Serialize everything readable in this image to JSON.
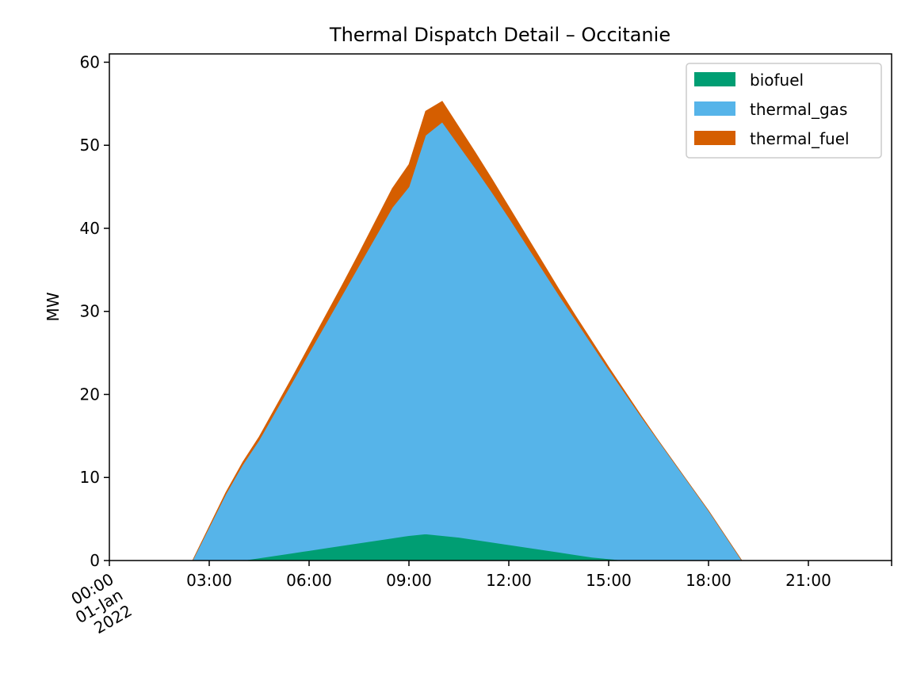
{
  "chart_data": {
    "type": "area",
    "stacked": true,
    "title": "Thermal Dispatch Detail – Occitanie",
    "xlabel": "",
    "ylabel": "MW",
    "xlim_hours": [
      0,
      23.5
    ],
    "ylim": [
      0,
      61
    ],
    "yticks": [
      0,
      10,
      20,
      30,
      40,
      50,
      60
    ],
    "xticks": [
      {
        "hour": 0,
        "lines": [
          "00:00",
          "01-Jan",
          "2022"
        ],
        "rotated": true
      },
      {
        "hour": 3,
        "lines": [
          "03:00"
        ],
        "rotated": false
      },
      {
        "hour": 6,
        "lines": [
          "06:00"
        ],
        "rotated": false
      },
      {
        "hour": 9,
        "lines": [
          "09:00"
        ],
        "rotated": false
      },
      {
        "hour": 12,
        "lines": [
          "12:00"
        ],
        "rotated": false
      },
      {
        "hour": 15,
        "lines": [
          "15:00"
        ],
        "rotated": false
      },
      {
        "hour": 18,
        "lines": [
          "18:00"
        ],
        "rotated": false
      },
      {
        "hour": 21,
        "lines": [
          "21:00"
        ],
        "rotated": false
      }
    ],
    "legend_position": "top-right",
    "grid": false,
    "x": [
      0,
      0.5,
      1,
      1.5,
      2,
      2.5,
      3,
      3.5,
      4,
      4.5,
      5,
      5.5,
      6,
      6.5,
      7,
      7.5,
      8,
      8.5,
      9,
      9.5,
      10,
      10.5,
      11,
      11.5,
      12,
      12.5,
      13,
      13.5,
      14,
      14.5,
      15,
      15.5,
      16,
      16.5,
      17,
      17.5,
      18,
      18.5,
      19,
      19.5,
      20,
      20.5,
      21,
      21.5,
      22,
      22.5,
      23,
      23.5
    ],
    "series": [
      {
        "name": "biofuel",
        "color": "#009E73",
        "values": [
          0,
          0,
          0,
          0,
          0,
          0,
          0,
          0,
          0,
          0.3,
          0.6,
          0.9,
          1.2,
          1.5,
          1.8,
          2.1,
          2.4,
          2.7,
          3.0,
          3.2,
          3.0,
          2.8,
          2.5,
          2.2,
          1.9,
          1.6,
          1.3,
          1.0,
          0.7,
          0.4,
          0.2,
          0,
          0,
          0,
          0,
          0,
          0,
          0,
          0,
          0,
          0,
          0,
          0,
          0,
          0,
          0,
          0,
          0
        ]
      },
      {
        "name": "thermal_gas",
        "color": "#56B4E9",
        "values": [
          0,
          0,
          0,
          0,
          0,
          0,
          4,
          8,
          11.5,
          14.2,
          17.4,
          20.6,
          23.8,
          27,
          30.2,
          33.4,
          36.6,
          39.8,
          42,
          48,
          49.8,
          47.2,
          44.7,
          42.1,
          39.4,
          36.6,
          33.8,
          31,
          28.3,
          25.6,
          22.8,
          20.1,
          17.2,
          14.4,
          11.6,
          8.8,
          6,
          3,
          0,
          0,
          0,
          0,
          0,
          0,
          0,
          0,
          0,
          0
        ]
      },
      {
        "name": "thermal_fuel",
        "color": "#D55E00",
        "values": [
          0,
          0,
          0,
          0,
          0,
          0,
          0.1,
          0.2,
          0.3,
          0.4,
          0.5,
          0.6,
          0.8,
          1.0,
          1.2,
          1.5,
          1.9,
          2.3,
          2.7,
          2.9,
          2.5,
          2.2,
          1.9,
          1.6,
          1.3,
          1.1,
          0.9,
          0.7,
          0.5,
          0.4,
          0.3,
          0.2,
          0.1,
          0,
          0,
          0,
          0,
          0,
          0,
          0,
          0,
          0,
          0,
          0,
          0,
          0,
          0,
          0
        ]
      }
    ]
  }
}
